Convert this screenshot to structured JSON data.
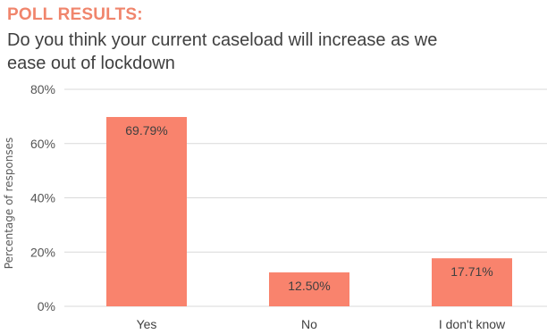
{
  "header": {
    "poll_label": "POLL RESULTS:",
    "question": "Do you think your current caseload will increase as we ease out of lockdown"
  },
  "colors": {
    "accent": "#f0856c",
    "bar": "#f9836d",
    "gridline": "#d9d9d9",
    "text": "#404040"
  },
  "chart_data": {
    "type": "bar",
    "title": "",
    "xlabel": "",
    "ylabel": "Percentage of responses",
    "categories": [
      "Yes",
      "No",
      "I don't know"
    ],
    "values": [
      69.79,
      12.5,
      17.71
    ],
    "data_labels": [
      "69.79%",
      "12.50%",
      "17.71%"
    ],
    "ylim": [
      0,
      80
    ],
    "yticks": [
      0,
      20,
      40,
      60,
      80
    ],
    "ytick_labels": [
      "0%",
      "20%",
      "40%",
      "60%",
      "80%"
    ],
    "grid": true,
    "legend": "none"
  }
}
